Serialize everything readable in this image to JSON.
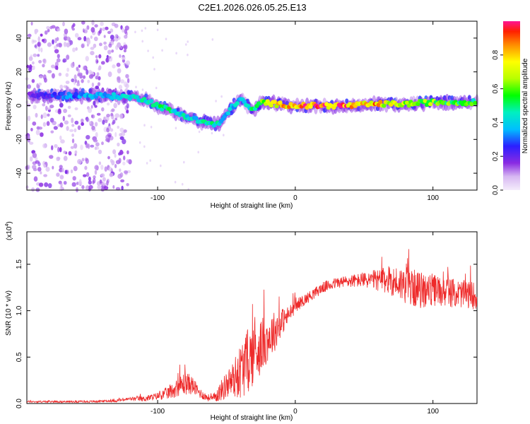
{
  "title": "C2E1.2026.026.05.25.E13",
  "chart_data": [
    {
      "type": "heatmap",
      "xlabel": "Height of straight line (km)",
      "ylabel": "Frequency (Hz)",
      "xlim": [
        -195,
        132
      ],
      "ylim": [
        -50,
        50
      ],
      "xticks": [
        {
          "v": -100,
          "label": "-100"
        },
        {
          "v": 0,
          "label": "0"
        },
        {
          "v": 100,
          "label": "100"
        }
      ],
      "yticks": [
        {
          "v": -40,
          "label": "-40"
        },
        {
          "v": -20,
          "label": "-20"
        },
        {
          "v": 0,
          "label": "0"
        },
        {
          "v": 20,
          "label": "20"
        },
        {
          "v": 40,
          "label": "40"
        }
      ],
      "colorbar": {
        "label": "Normalized spectral amplitude",
        "range": [
          0.0,
          1.0
        ],
        "ticks": [
          {
            "v": 0.0,
            "label": "0.0"
          },
          {
            "v": 0.2,
            "label": "0.2"
          },
          {
            "v": 0.4,
            "label": "0.4"
          },
          {
            "v": 0.6,
            "label": "0.6"
          },
          {
            "v": 0.8,
            "label": "0.8"
          }
        ]
      },
      "ridge": {
        "x": [
          -193,
          -180,
          -160,
          -140,
          -120,
          -110,
          -100,
          -90,
          -80,
          -70,
          -60,
          -55,
          -50,
          -45,
          -40,
          -35,
          -30,
          -25,
          -22,
          -15,
          0,
          20,
          40,
          60,
          80,
          100,
          120,
          132
        ],
        "freq": [
          6,
          6,
          6,
          6,
          5,
          4,
          0,
          -3,
          -6,
          -9,
          -11,
          -11,
          -5,
          0,
          4,
          0,
          -3,
          2,
          2,
          1,
          0,
          0,
          0,
          1,
          1,
          2,
          2,
          2
        ],
        "amplitude": [
          0.2,
          0.25,
          0.35,
          0.4,
          0.45,
          0.45,
          0.5,
          0.5,
          0.45,
          0.45,
          0.5,
          0.45,
          0.4,
          0.4,
          0.45,
          0.45,
          0.5,
          0.6,
          0.7,
          0.75,
          0.95,
          0.95,
          0.9,
          0.85,
          0.7,
          0.65,
          0.6,
          0.55
        ]
      },
      "noise_region": {
        "x_from": -195,
        "x_to": -120,
        "amplitude": 0.05
      }
    },
    {
      "type": "line",
      "xlabel": "Height of straight line (km)",
      "ylabel": "SNR (10 * v/v)",
      "y_multiplier": "(x10",
      "y_multiplier_exp": "4",
      "y_multiplier_close": ")",
      "xlim": [
        -195,
        132
      ],
      "ylim": [
        0,
        1.85
      ],
      "xticks": [
        {
          "v": -100,
          "label": "-100"
        },
        {
          "v": 0,
          "label": "0"
        },
        {
          "v": 100,
          "label": "100"
        }
      ],
      "yticks": [
        {
          "v": 0.0,
          "label": "0.0"
        },
        {
          "v": 0.5,
          "label": "0.5"
        },
        {
          "v": 1.0,
          "label": "1.0"
        },
        {
          "v": 1.5,
          "label": "1.5"
        }
      ],
      "series": [
        {
          "name": "SNR",
          "color": "#ee2a2a",
          "x": [
            -195,
            -170,
            -150,
            -130,
            -120,
            -110,
            -100,
            -95,
            -90,
            -85,
            -80,
            -75,
            -70,
            -65,
            -60,
            -55,
            -50,
            -45,
            -40,
            -35,
            -30,
            -25,
            -20,
            -15,
            -10,
            -5,
            0,
            10,
            20,
            30,
            40,
            50,
            60,
            70,
            80,
            90,
            100,
            110,
            120,
            132
          ],
          "mean": [
            0.02,
            0.02,
            0.02,
            0.03,
            0.05,
            0.05,
            0.08,
            0.1,
            0.13,
            0.18,
            0.22,
            0.2,
            0.12,
            0.07,
            0.05,
            0.12,
            0.2,
            0.26,
            0.35,
            0.45,
            0.55,
            0.62,
            0.7,
            0.78,
            0.88,
            0.95,
            1.05,
            1.15,
            1.25,
            1.3,
            1.32,
            1.33,
            1.33,
            1.32,
            1.28,
            1.22,
            1.22,
            1.2,
            1.18,
            1.16
          ],
          "spread": [
            0.01,
            0.01,
            0.01,
            0.015,
            0.02,
            0.03,
            0.04,
            0.06,
            0.08,
            0.1,
            0.13,
            0.1,
            0.06,
            0.04,
            0.04,
            0.1,
            0.15,
            0.2,
            0.3,
            0.35,
            0.35,
            0.3,
            0.25,
            0.22,
            0.15,
            0.1,
            0.07,
            0.06,
            0.06,
            0.06,
            0.07,
            0.08,
            0.12,
            0.16,
            0.2,
            0.2,
            0.18,
            0.16,
            0.15,
            0.15
          ]
        }
      ]
    }
  ]
}
